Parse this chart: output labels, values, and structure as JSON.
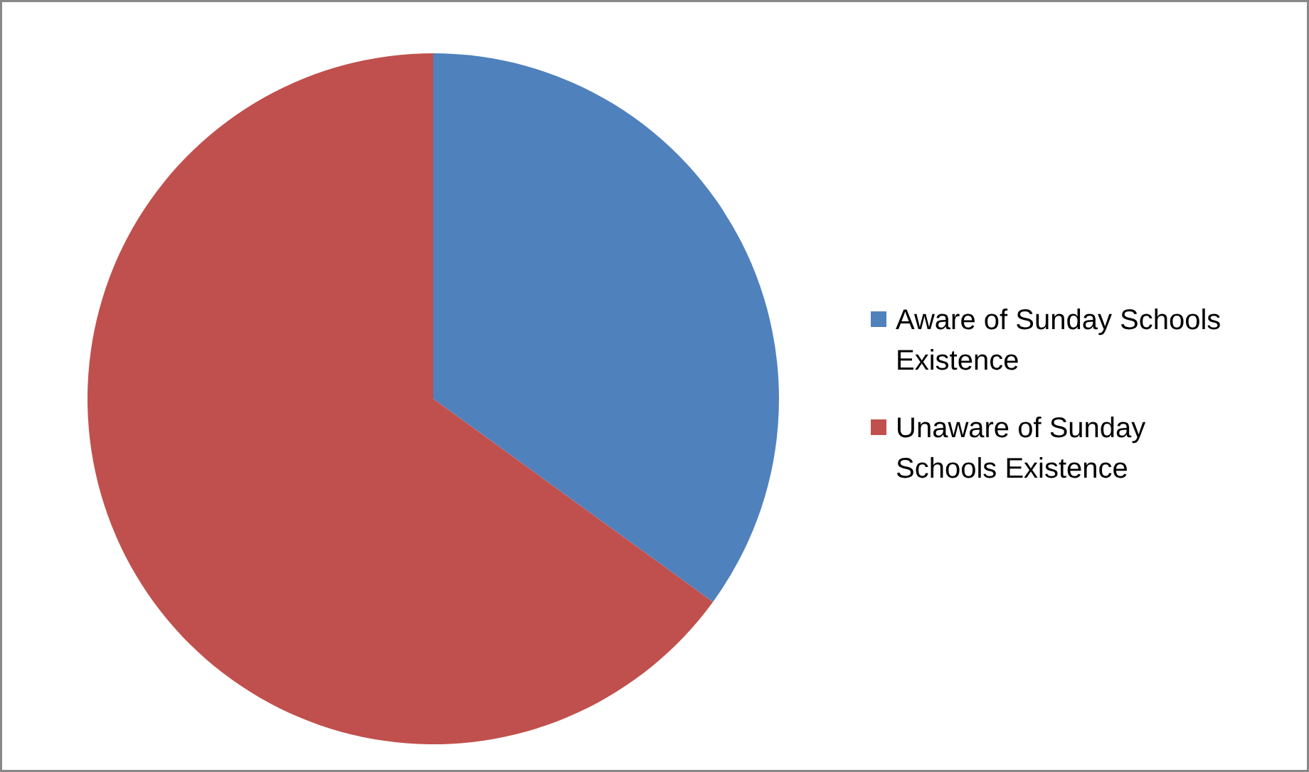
{
  "chart_data": {
    "type": "pie",
    "categories": [
      "Aware of Sunday Schools Existence",
      "Unaware of Sunday Schools Existence"
    ],
    "values": [
      35,
      65
    ],
    "colors": [
      "#4f81bd",
      "#c0504d"
    ],
    "legend": "right"
  }
}
